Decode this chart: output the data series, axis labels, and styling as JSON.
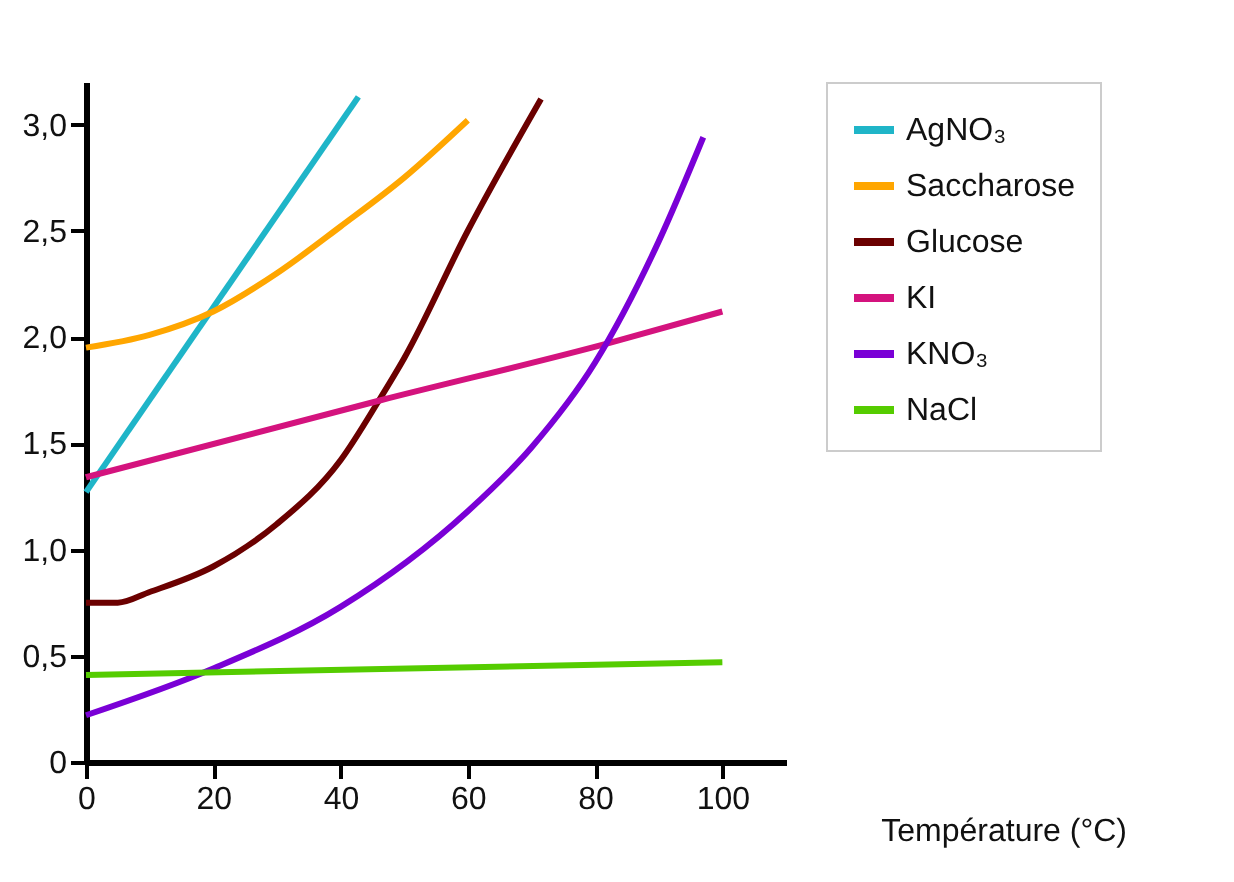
{
  "chart_data": {
    "type": "line",
    "xlabel": "Température (°C)",
    "xlim": [
      0,
      110
    ],
    "xticks": [
      0,
      20,
      40,
      60,
      80,
      100
    ],
    "ylim": [
      0,
      3.2
    ],
    "yticks": [
      0,
      {
        "value": 0.5,
        "label": "0,5"
      },
      {
        "value": 1,
        "label": "1,0"
      },
      {
        "value": 1.5,
        "label": "1,5"
      },
      {
        "value": 2,
        "label": "2,0"
      },
      {
        "value": 2.5,
        "label": "2,5"
      },
      {
        "value": 3,
        "label": "3,0"
      }
    ],
    "grid": false,
    "legend": "right",
    "marker": "none",
    "line_style": "solid",
    "series": [
      {
        "name": "AgNO₃",
        "color": "#1fb5c8",
        "x": [
          0,
          42.8
        ],
        "values": [
          1.27,
          3.13
        ]
      },
      {
        "name": "Saccharose",
        "color": "#ffa600",
        "x": [
          0,
          10,
          20,
          30,
          40,
          50,
          60
        ],
        "values": [
          1.95,
          2.01,
          2.12,
          2.3,
          2.52,
          2.75,
          3.02
        ]
      },
      {
        "name": "Glucose",
        "color": "#6b0000",
        "x": [
          0,
          5,
          10,
          20,
          30,
          40,
          46,
          50,
          60,
          71.5
        ],
        "values": [
          0.75,
          0.75,
          0.8,
          0.92,
          1.12,
          1.42,
          1.7,
          1.9,
          2.5,
          3.12
        ]
      },
      {
        "name": "KI",
        "color": "#d4137e",
        "x": [
          0,
          46,
          82,
          100
        ],
        "values": [
          1.34,
          1.7,
          1.97,
          2.12
        ]
      },
      {
        "name": "KNO₃",
        "color": "#7a00d6",
        "x": [
          0,
          20,
          40,
          60,
          70,
          80,
          90,
          97
        ],
        "values": [
          0.22,
          0.44,
          0.73,
          1.18,
          1.48,
          1.88,
          2.45,
          2.94
        ]
      },
      {
        "name": "NaCl",
        "color": "#55cc00",
        "x": [
          0,
          100
        ],
        "values": [
          0.41,
          0.47
        ]
      }
    ]
  }
}
